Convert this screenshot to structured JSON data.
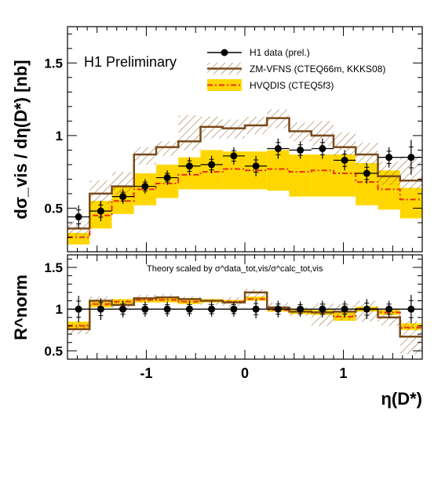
{
  "chart_data": [
    {
      "type": "line",
      "panel": "top",
      "ylabel": "dσ_vis / dη(D*) [nb]",
      "annotation": "H1 Preliminary",
      "xlim": [
        -1.8,
        1.8
      ],
      "ylim": [
        0.2,
        1.75
      ],
      "yticks": [
        0.5,
        1,
        1.5
      ],
      "ytick_labels": [
        "0.5",
        "1",
        "1.5"
      ],
      "legend": {
        "placement": "top-right",
        "entries": [
          "H1 data (prel.)",
          "ZM-VFNS (CTEQ66m, KKKS08)",
          "HVQDIS (CTEQ5f3)"
        ]
      },
      "bin_edges": [
        -1.8,
        -1.575,
        -1.35,
        -1.125,
        -0.9,
        -0.675,
        -0.45,
        -0.225,
        0.0,
        0.225,
        0.45,
        0.675,
        0.9,
        1.125,
        1.35,
        1.575,
        1.8
      ],
      "series": [
        {
          "name": "H1 data (prel.)",
          "kind": "points",
          "x": [
            -1.6875,
            -1.4625,
            -1.2375,
            -1.0125,
            -0.7875,
            -0.5625,
            -0.3375,
            -0.1125,
            0.1125,
            0.3375,
            0.5625,
            0.7875,
            1.0125,
            1.2375,
            1.4625,
            1.6875
          ],
          "y": [
            0.44,
            0.48,
            0.58,
            0.65,
            0.71,
            0.79,
            0.8,
            0.86,
            0.79,
            0.91,
            0.9,
            0.91,
            0.83,
            0.74,
            0.85,
            0.85
          ],
          "yerr": [
            0.08,
            0.07,
            0.05,
            0.05,
            0.05,
            0.06,
            0.06,
            0.06,
            0.07,
            0.07,
            0.06,
            0.07,
            0.07,
            0.07,
            0.07,
            0.12
          ]
        },
        {
          "name": "ZM-VFNS (CTEQ66m, KKKS08)",
          "kind": "step-band",
          "values": [
            0.36,
            0.6,
            0.65,
            0.87,
            0.92,
            0.96,
            1.06,
            1.05,
            1.07,
            1.12,
            1.03,
            1.0,
            0.92,
            0.87,
            0.72,
            0.69
          ],
          "band_low": [
            0.31,
            0.53,
            0.59,
            0.8,
            0.86,
            0.9,
            0.98,
            0.98,
            1.01,
            1.05,
            0.96,
            0.93,
            0.86,
            0.8,
            0.66,
            0.63
          ],
          "band_high": [
            0.41,
            0.69,
            0.75,
            0.92,
            0.96,
            1.14,
            1.13,
            1.11,
            1.13,
            1.18,
            1.09,
            1.1,
            1.02,
            0.95,
            0.82,
            0.86
          ]
        },
        {
          "name": "HVQDIS (CTEQ5f3)",
          "kind": "step-band",
          "values": [
            0.3,
            0.45,
            0.55,
            0.63,
            0.67,
            0.73,
            0.75,
            0.77,
            0.76,
            0.77,
            0.75,
            0.76,
            0.74,
            0.68,
            0.63,
            0.56
          ],
          "band_low": [
            0.25,
            0.36,
            0.46,
            0.52,
            0.57,
            0.63,
            0.63,
            0.63,
            0.63,
            0.62,
            0.58,
            0.58,
            0.58,
            0.52,
            0.49,
            0.43
          ],
          "band_high": [
            0.33,
            0.55,
            0.65,
            0.74,
            0.8,
            0.85,
            0.9,
            0.89,
            0.89,
            0.9,
            0.87,
            0.87,
            0.87,
            0.81,
            0.76,
            0.64
          ]
        }
      ]
    },
    {
      "type": "line",
      "panel": "bottom",
      "ylabel": "R^norm",
      "xlabel": "η(D*)",
      "annotation": "Theory scaled by σ^data_tot,vis/σ^calc_tot,vis",
      "xlim": [
        -1.8,
        1.8
      ],
      "ylim": [
        0.4,
        1.65
      ],
      "yticks": [
        0.5,
        1,
        1.5
      ],
      "ytick_labels": [
        "0.5",
        "1",
        "1.5"
      ],
      "xticks": [
        -1,
        0,
        1
      ],
      "xtick_labels": [
        "-1",
        "0",
        "1"
      ],
      "reference_line": 1.0,
      "bin_edges": [
        -1.8,
        -1.575,
        -1.35,
        -1.125,
        -0.9,
        -0.675,
        -0.45,
        -0.225,
        0.0,
        0.225,
        0.45,
        0.675,
        0.9,
        1.125,
        1.35,
        1.575,
        1.8
      ],
      "series": [
        {
          "name": "H1 data (prel.)",
          "kind": "points",
          "x": [
            -1.6875,
            -1.4625,
            -1.2375,
            -1.0125,
            -0.7875,
            -0.5625,
            -0.3375,
            -0.1125,
            0.1125,
            0.3375,
            0.5625,
            0.7875,
            1.0125,
            1.2375,
            1.4625,
            1.6875
          ],
          "y": [
            1,
            1,
            1,
            1,
            1,
            1,
            1,
            1,
            1,
            1,
            1,
            1,
            1,
            1,
            1,
            1
          ],
          "yerr": [
            0.16,
            0.13,
            0.1,
            0.09,
            0.09,
            0.09,
            0.09,
            0.09,
            0.11,
            0.1,
            0.09,
            0.1,
            0.1,
            0.12,
            0.1,
            0.17
          ]
        },
        {
          "name": "ZM-VFNS (CTEQ66m, KKKS08)",
          "kind": "step-band",
          "values": [
            0.76,
            1.1,
            1.05,
            1.13,
            1.14,
            1.12,
            1.1,
            1.08,
            1.2,
            1.02,
            0.97,
            0.96,
            0.97,
            1.0,
            0.9,
            0.67
          ],
          "band_low": [
            0.7,
            1.03,
            1.0,
            1.08,
            1.1,
            1.07,
            1.05,
            1.02,
            1.12,
            0.97,
            0.92,
            0.8,
            0.87,
            0.85,
            0.8,
            0.46
          ],
          "band_high": [
            0.83,
            1.15,
            1.12,
            1.17,
            1.18,
            1.15,
            1.12,
            1.14,
            1.24,
            1.08,
            1.02,
            1.07,
            1.06,
            1.1,
            1.0,
            0.86
          ]
        },
        {
          "name": "HVQDIS (CTEQ5f3)",
          "kind": "step-band",
          "values": [
            0.8,
            1.06,
            1.09,
            1.11,
            1.11,
            1.09,
            1.1,
            1.09,
            1.12,
            0.99,
            0.97,
            0.96,
            0.91,
            1.0,
            0.96,
            0.78
          ],
          "band_low": [
            0.76,
            1.02,
            1.06,
            1.08,
            1.08,
            1.06,
            1.08,
            1.07,
            1.1,
            0.97,
            0.94,
            0.93,
            0.86,
            0.97,
            0.93,
            0.75
          ],
          "band_high": [
            0.85,
            1.09,
            1.12,
            1.14,
            1.14,
            1.12,
            1.12,
            1.11,
            1.15,
            1.02,
            1.0,
            0.99,
            0.96,
            1.03,
            0.99,
            0.83
          ]
        }
      ]
    }
  ],
  "colors": {
    "data": "#000000",
    "zmvfns_line": "#7a4a1a",
    "zmvfns_hatch": "#8b5a2b",
    "hvqdis_band": "#ffd700",
    "hvqdis_line": "#e8321e",
    "axis": "#000000"
  }
}
